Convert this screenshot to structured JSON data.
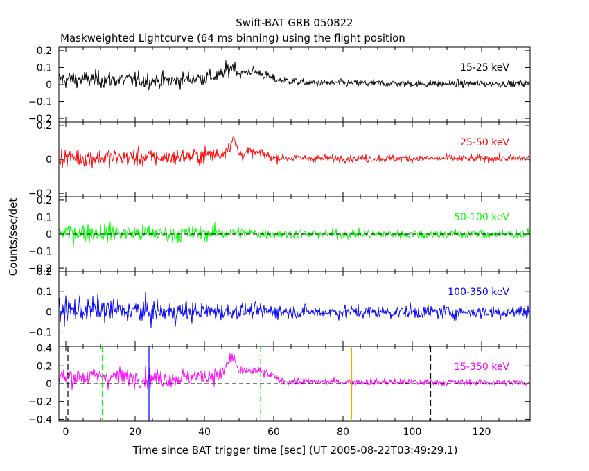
{
  "chart_data": {
    "type": "line",
    "title": "Swift-BAT GRB 050822",
    "subtitle": "Maskweighted Lightcurve (64 ms binning) using the flight position",
    "xlabel": "Time since BAT trigger time [sec] (UT 2005-08-22T03:49:29.1)",
    "ylabel": "Counts/sec/det",
    "xlim": [
      -2,
      134
    ],
    "x_ticks": [
      0,
      20,
      40,
      60,
      80,
      100,
      120
    ],
    "x_tick_labels": [
      "0",
      "20",
      "40",
      "60",
      "80",
      "100",
      "120"
    ],
    "bin_width_s": 0.064,
    "panels": [
      {
        "name": "15-25 keV",
        "color": "#000000",
        "ylim": [
          -0.22,
          0.22
        ],
        "yticks": [
          0.2,
          0.1,
          0,
          -0.1,
          -0.2
        ],
        "ytick_labels": [
          "0.2",
          "0.1",
          "0",
          "−0.1",
          "−0.2"
        ],
        "zero_line": false,
        "envelope": {
          "t": [
            -2,
            10,
            30,
            44,
            47,
            48.5,
            50,
            54,
            57,
            60,
            70,
            100,
            134
          ],
          "mean": [
            0.03,
            0.03,
            0.02,
            0.05,
            0.09,
            0.11,
            0.06,
            0.08,
            0.06,
            0.03,
            0.01,
            0.005,
            0.005
          ],
          "noise": [
            0.045,
            0.045,
            0.04,
            0.04,
            0.04,
            0.035,
            0.03,
            0.025,
            0.025,
            0.022,
            0.018,
            0.018,
            0.017
          ]
        }
      },
      {
        "name": "25-50 keV",
        "color": "#ff0000",
        "ylim": [
          -0.22,
          0.22
        ],
        "yticks": [
          0.2,
          0,
          -0.2
        ],
        "ytick_labels": [
          "0.2",
          "0",
          "−0.2"
        ],
        "zero_line": false,
        "envelope": {
          "t": [
            -2,
            10,
            30,
            45,
            47,
            48.5,
            50,
            53,
            57,
            60,
            70,
            100,
            134
          ],
          "mean": [
            0.01,
            0.01,
            0.01,
            0.03,
            0.08,
            0.12,
            0.03,
            0.04,
            0.03,
            0.01,
            0.005,
            0.005,
            0.005
          ],
          "noise": [
            0.05,
            0.05,
            0.045,
            0.04,
            0.04,
            0.035,
            0.03,
            0.028,
            0.025,
            0.022,
            0.02,
            0.02,
            0.02
          ]
        }
      },
      {
        "name": "50-100 keV",
        "color": "#00ff00",
        "ylim": [
          -0.22,
          0.22
        ],
        "yticks": [
          0.2,
          0.1,
          0,
          -0.1,
          -0.2
        ],
        "ytick_labels": [
          "0.2",
          "0.1",
          "0",
          "−0.1",
          "−0.2"
        ],
        "zero_line": true,
        "envelope": {
          "t": [
            -2,
            10,
            30,
            48,
            60,
            134
          ],
          "mean": [
            0.01,
            0.01,
            0.0,
            0.01,
            0.0,
            0.0
          ],
          "noise": [
            0.05,
            0.05,
            0.045,
            0.035,
            0.025,
            0.025
          ]
        }
      },
      {
        "name": "100-350 keV",
        "color": "#0000ff",
        "ylim": [
          -0.17,
          0.2
        ],
        "yticks": [
          0.2,
          0.1,
          0,
          -0.1
        ],
        "ytick_labels": [
          "0.2",
          "0.1",
          "0",
          "−0.1"
        ],
        "zero_line": true,
        "envelope": {
          "t": [
            -2,
            10,
            30,
            50,
            70,
            134
          ],
          "mean": [
            0.01,
            0.01,
            0.0,
            0.005,
            0.0,
            0.0
          ],
          "noise": [
            0.055,
            0.055,
            0.05,
            0.035,
            0.03,
            0.03
          ]
        }
      },
      {
        "name": "15-350 keV",
        "color": "#ff00ff",
        "ylim": [
          -0.42,
          0.42
        ],
        "yticks": [
          0.4,
          0.2,
          0,
          -0.2,
          -0.4
        ],
        "ytick_labels": [
          "0.4",
          "0.2",
          "0",
          "−0.2",
          "−0.4"
        ],
        "zero_line": true,
        "envelope": {
          "t": [
            -2,
            10,
            30,
            45,
            47,
            48.5,
            50,
            54,
            57,
            60,
            62,
            70,
            100,
            134
          ],
          "mean": [
            0.08,
            0.08,
            0.06,
            0.1,
            0.25,
            0.3,
            0.12,
            0.15,
            0.13,
            0.08,
            0.03,
            0.02,
            0.02,
            0.01
          ],
          "noise": [
            0.1,
            0.1,
            0.09,
            0.08,
            0.07,
            0.06,
            0.05,
            0.05,
            0.045,
            0.04,
            0.035,
            0.035,
            0.035,
            0.035
          ]
        }
      }
    ],
    "markers": [
      {
        "t": 0.6,
        "color": "#000000",
        "style": "dash"
      },
      {
        "t": 10.5,
        "color": "#00ff00",
        "style": "dash"
      },
      {
        "t": 24.0,
        "color": "#0000ff",
        "style": "solid"
      },
      {
        "t": 56.2,
        "color": "#00ff00",
        "style": "dashdot"
      },
      {
        "t": 82.5,
        "color": "#ffa500",
        "style": "solid"
      },
      {
        "t": 105.3,
        "color": "#000000",
        "style": "dash"
      }
    ]
  }
}
